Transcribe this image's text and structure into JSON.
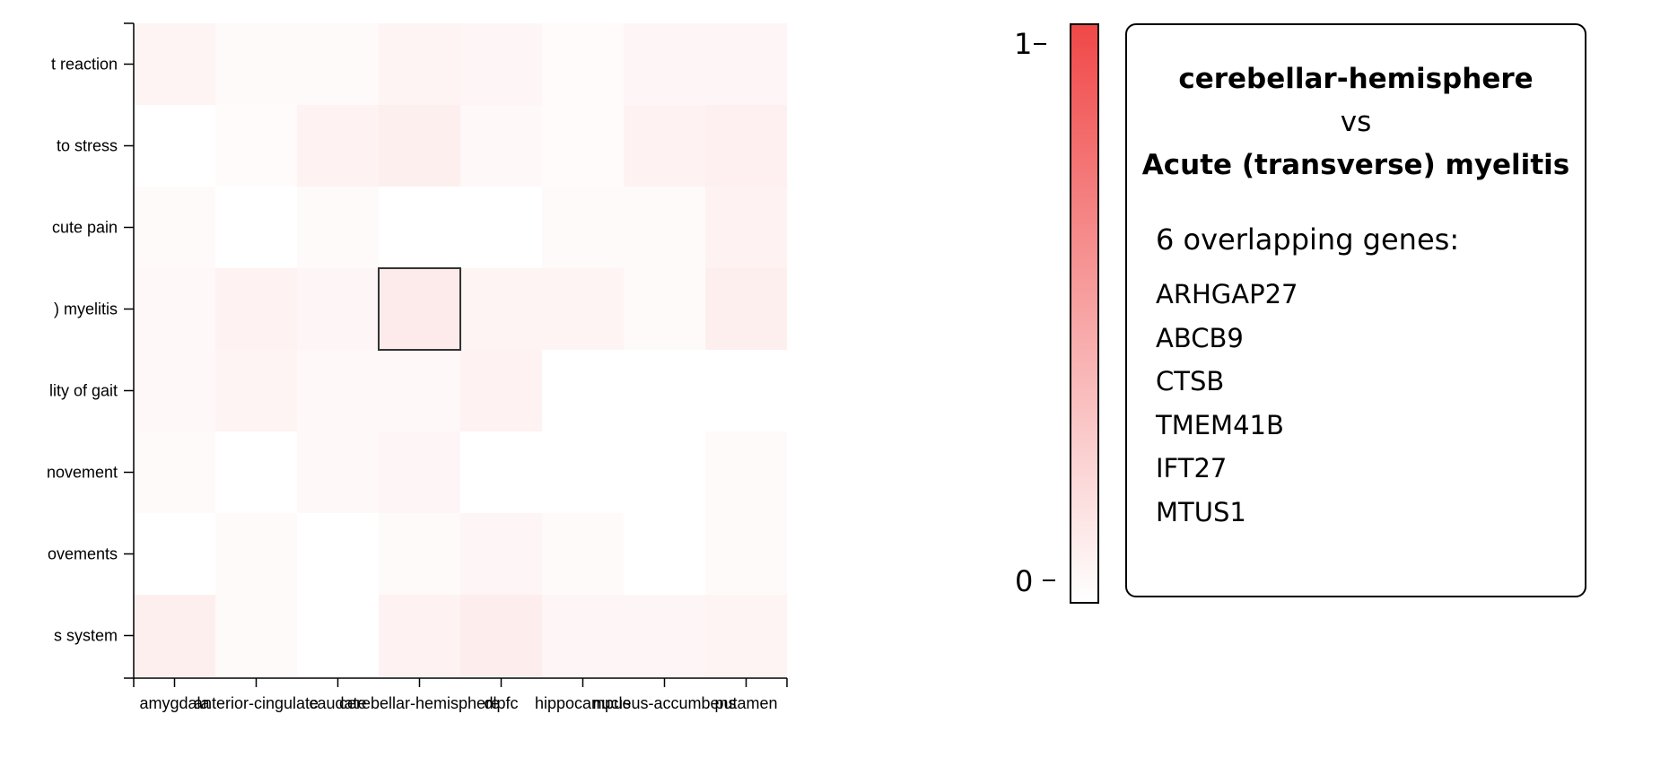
{
  "chart_data": {
    "type": "heatmap",
    "x_categories": [
      "amygdala",
      "anterior-cingulate",
      "caudate",
      "cerebellar-hemisphere",
      "dlpfc",
      "hippocampus",
      "nucleus-accumbens",
      "putamen"
    ],
    "y_categories": [
      "t reaction",
      "to stress",
      "cute pain",
      ") myelitis",
      "lity of gait",
      "novement",
      "ovements",
      "s system"
    ],
    "values": [
      [
        0.06,
        0.03,
        0.03,
        0.06,
        0.05,
        0.02,
        0.05,
        0.05
      ],
      [
        0.0,
        0.02,
        0.07,
        0.09,
        0.04,
        0.02,
        0.07,
        0.08
      ],
      [
        0.03,
        0.0,
        0.03,
        0.0,
        0.0,
        0.03,
        0.03,
        0.07
      ],
      [
        0.04,
        0.07,
        0.05,
        0.11,
        0.06,
        0.06,
        0.03,
        0.09
      ],
      [
        0.04,
        0.06,
        0.04,
        0.04,
        0.07,
        0.0,
        0.0,
        0.0
      ],
      [
        0.03,
        0.0,
        0.04,
        0.05,
        0.0,
        0.0,
        0.0,
        0.03
      ],
      [
        0.0,
        0.03,
        0.0,
        0.03,
        0.05,
        0.03,
        0.0,
        0.03
      ],
      [
        0.09,
        0.03,
        0.0,
        0.07,
        0.1,
        0.05,
        0.05,
        0.06
      ]
    ],
    "highlight": {
      "x": "cerebellar-hemisphere",
      "y": ") myelitis"
    },
    "colorscale": {
      "min": 0,
      "max": 1,
      "low_color": "#ffffff",
      "high_color": "#f04848"
    },
    "colorbar_ticks": [
      "1",
      "0"
    ],
    "xlabel": "",
    "ylabel": ""
  },
  "info": {
    "tissue": "cerebellar-hemisphere",
    "vs": "vs",
    "phenotype": "Acute (transverse) myelitis",
    "overlap_label": "6 overlapping genes:",
    "genes": [
      "ARHGAP27",
      "ABCB9",
      "CTSB",
      "TMEM41B",
      "IFT27",
      "MTUS1"
    ]
  }
}
